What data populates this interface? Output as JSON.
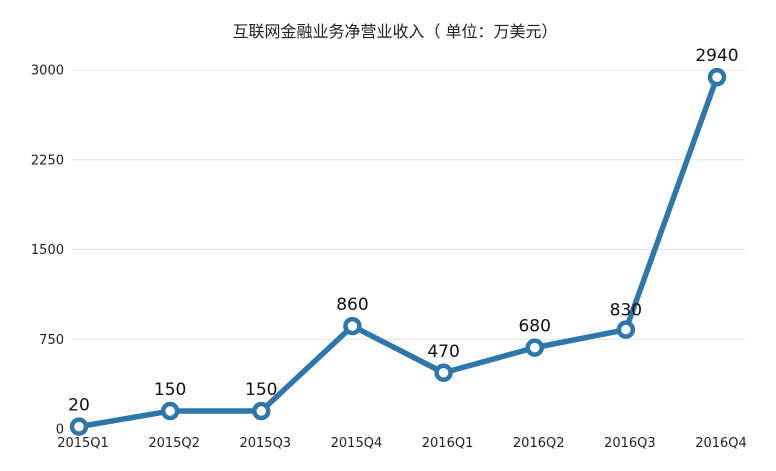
{
  "chart_data": {
    "type": "line",
    "title": "互联网金融业务净营业收入（ 单位：万美元）",
    "categories": [
      "2015Q1",
      "2015Q2",
      "2015Q3",
      "2015Q4",
      "2016Q1",
      "2016Q2",
      "2016Q3",
      "2016Q4"
    ],
    "values": [
      20,
      150,
      150,
      860,
      470,
      680,
      830,
      2940
    ],
    "data_labels": [
      "20",
      "150",
      "150",
      "860",
      "470",
      "680",
      "830",
      "2940"
    ],
    "y_ticks": [
      "0",
      "750",
      "1500",
      "2250",
      "3000"
    ],
    "ylim": [
      0,
      3000
    ],
    "grid": true,
    "line_color": "#2f77aa",
    "grid_color": "#e4e4e4"
  }
}
